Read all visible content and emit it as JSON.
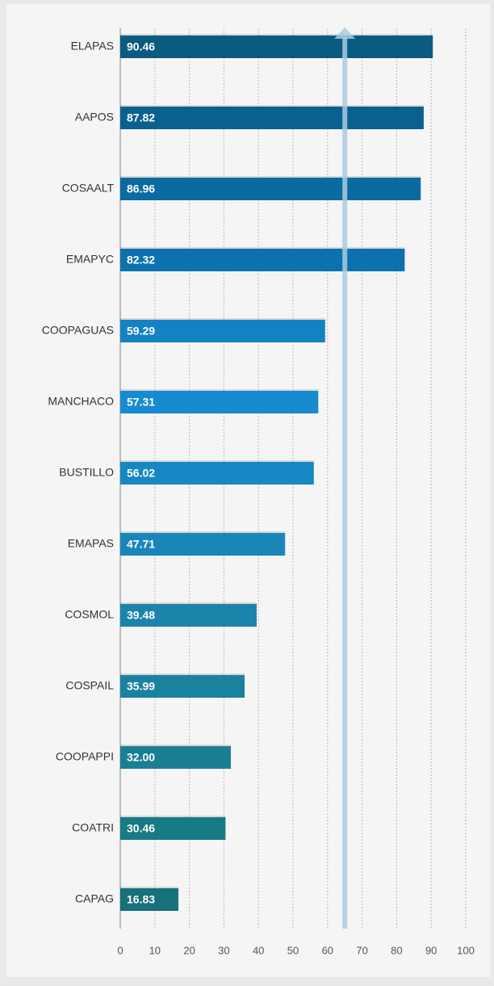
{
  "chart_data": {
    "type": "hbar",
    "categories": [
      "ELAPAS",
      "AAPOS",
      "COSAALT",
      "EMAPYC",
      "COOPAGUAS",
      "MANCHACO",
      "BUSTILLO",
      "EMAPAS",
      "COSMOL",
      "COSPAIL",
      "COOPAPPI",
      "COATRI",
      "CAPAG"
    ],
    "values": [
      90.46,
      87.82,
      86.96,
      82.32,
      59.29,
      57.31,
      56.02,
      47.71,
      39.48,
      35.99,
      32.0,
      30.46,
      16.83
    ],
    "value_labels": [
      "90.46",
      "87.82",
      "86.96",
      "82.32",
      "59.29",
      "57.31",
      "56.02",
      "47.71",
      "39.48",
      "35.99",
      "32.00",
      "30.46",
      "16.83"
    ],
    "colors": [
      "#0b5a80",
      "#0a6090",
      "#0b6aa0",
      "#0c72ae",
      "#1482c2",
      "#168bcf",
      "#1787c4",
      "#1a86b8",
      "#1a84ab",
      "#1a829f",
      "#1a7f93",
      "#187a84",
      "#17707a"
    ],
    "xlim": [
      0,
      100
    ],
    "xticks": [
      0,
      10,
      20,
      30,
      40,
      50,
      60,
      70,
      80,
      90,
      100
    ],
    "grid": true,
    "reference_line": 65,
    "reference_color": "#a9cde0"
  }
}
